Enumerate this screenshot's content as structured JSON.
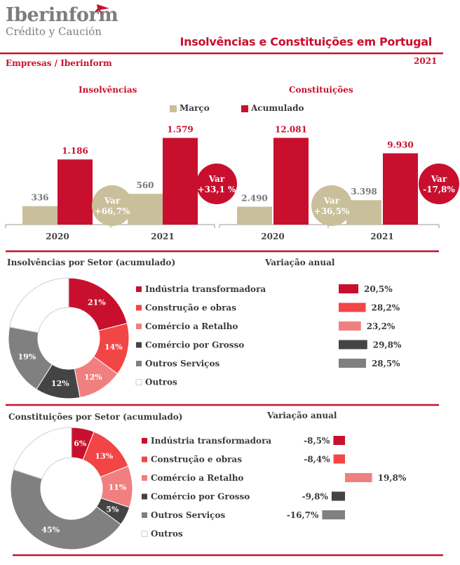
{
  "header": {
    "brand": "Iberinform",
    "brand_sub": "Crédito y Caución",
    "title": "Insolvências e Constituições em  Portugal",
    "subheader": "Empresas / Iberinform",
    "year": "2021"
  },
  "colors": {
    "accent": "#c8102e",
    "beige": "#c9bf9b",
    "dark": "#444444",
    "grey": "#808080",
    "salmon": "#f08080",
    "bright_red": "#f24545"
  },
  "legend": {
    "marco": "Março",
    "acumulado": "Acumulado"
  },
  "chart_data": [
    {
      "type": "bar",
      "title": "Insolvências",
      "categories": [
        "2020",
        "2021"
      ],
      "series": [
        {
          "name": "Março",
          "values": [
            336,
            560
          ]
        },
        {
          "name": "Acumulado",
          "values": [
            1186,
            1579
          ]
        }
      ],
      "value_labels": {
        "Março": [
          "336",
          "560"
        ],
        "Acumulado": [
          "1.186",
          "1.579"
        ]
      },
      "var_marco": [
        "Var",
        "+66,7%"
      ],
      "var_acumulado": [
        "Var",
        "+33,1 %"
      ]
    },
    {
      "type": "bar",
      "title": "Constituições",
      "categories": [
        "2020",
        "2021"
      ],
      "series": [
        {
          "name": "Março",
          "values": [
            2490,
            3398
          ]
        },
        {
          "name": "Acumulado",
          "values": [
            12081,
            9930
          ]
        }
      ],
      "value_labels": {
        "Março": [
          "2.490",
          "3.398"
        ],
        "Acumulado": [
          "12.081",
          "9.930"
        ]
      },
      "var_marco": [
        "Var",
        "+36,5%"
      ],
      "var_acumulado": [
        "Var",
        "-17,8%"
      ]
    },
    {
      "type": "pie",
      "title": "Insolvências por Setor (acumulado)",
      "slices": [
        {
          "name": "Indústria transformadora",
          "value": 21,
          "label": "21%"
        },
        {
          "name": "Construção e obras",
          "value": 14,
          "label": "14%"
        },
        {
          "name": "Comércio a Retalho",
          "value": 12,
          "label": "12%"
        },
        {
          "name": "Comércio por Grosso",
          "value": 12,
          "label": "12%"
        },
        {
          "name": "Outros Serviços",
          "value": 19,
          "label": "19%"
        },
        {
          "name": "Outros",
          "value": 22,
          "label": ""
        }
      ],
      "variation_title": "Variação anual",
      "variation": [
        {
          "value": 20.5,
          "label": "20,5%"
        },
        {
          "value": 28.2,
          "label": "28,2%"
        },
        {
          "value": 23.2,
          "label": "23,2%"
        },
        {
          "value": 29.8,
          "label": "29,8%"
        },
        {
          "value": 28.5,
          "label": "28,5%"
        }
      ]
    },
    {
      "type": "pie",
      "title": "Constituições por Setor (acumulado)",
      "slices": [
        {
          "name": "Indústria transformadora",
          "value": 6,
          "label": "6%"
        },
        {
          "name": "Construção e obras",
          "value": 13,
          "label": "13%"
        },
        {
          "name": "Comércio a Retalho",
          "value": 11,
          "label": "11%"
        },
        {
          "name": "Comércio por Grosso",
          "value": 5,
          "label": "5%"
        },
        {
          "name": "Outros Serviços",
          "value": 45,
          "label": "45%"
        },
        {
          "name": "Outros",
          "value": 20,
          "label": ""
        }
      ],
      "variation_title": "Variação anual",
      "variation": [
        {
          "value": -8.5,
          "label": "-8,5%"
        },
        {
          "value": -8.4,
          "label": "-8,4%"
        },
        {
          "value": 19.8,
          "label": "19,8%"
        },
        {
          "value": -9.8,
          "label": "-9,8%"
        },
        {
          "value": -16.7,
          "label": "-16,7%"
        }
      ]
    }
  ]
}
